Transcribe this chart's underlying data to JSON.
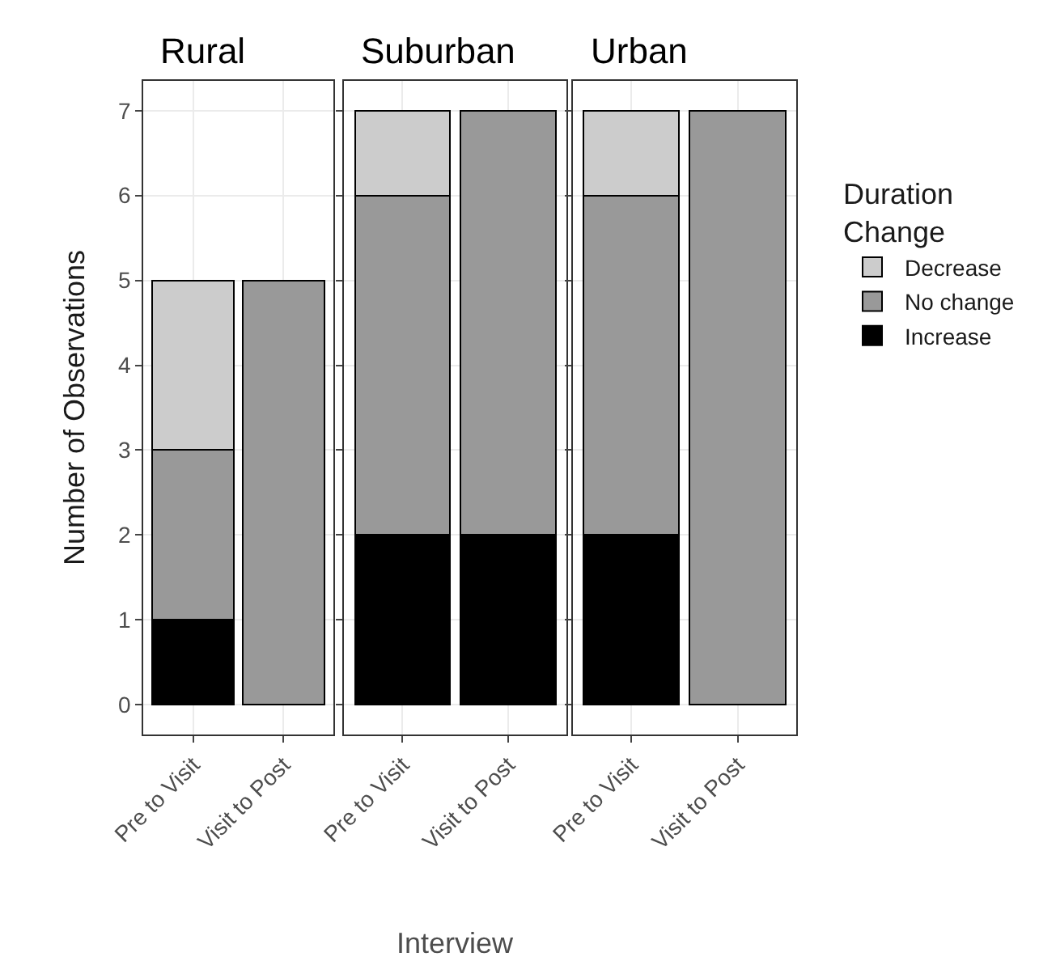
{
  "chart_data": [
    {
      "type": "bar",
      "title": "Rural",
      "ylabel": "Number of Observations",
      "categories": [
        "Pre to Visit",
        "Visit to Post"
      ],
      "stacked": true,
      "ylim": [
        -0.35,
        7.35
      ],
      "yticks": [
        0,
        1,
        2,
        3,
        4,
        5,
        6,
        7
      ],
      "grid": true,
      "legend": "right",
      "legend_title": "Duration Change",
      "series": [
        {
          "name": "Increase",
          "color": "#000000",
          "values": [
            1,
            null
          ]
        },
        {
          "name": "No change",
          "color": "#999999",
          "values": [
            2,
            5
          ]
        },
        {
          "name": "Decrease",
          "color": "#cccccc",
          "values": [
            2,
            null
          ]
        }
      ]
    },
    {
      "type": "bar",
      "title": "Suburban",
      "xlabel": "Interview",
      "categories": [
        "Pre to Visit",
        "Visit to Post"
      ],
      "stacked": true,
      "ylim": [
        -0.35,
        7.35
      ],
      "yticks": [
        0,
        1,
        2,
        3,
        4,
        5,
        6,
        7
      ],
      "grid": true,
      "tick_labels": "x",
      "series": [
        {
          "color": "#000000",
          "values": [
            2,
            2
          ]
        },
        {
          "color": "#999999",
          "values": [
            4,
            5
          ]
        },
        {
          "color": "#cccccc",
          "values": [
            1,
            null
          ]
        }
      ]
    },
    {
      "type": "bar",
      "title": "Urban",
      "categories": [
        "Pre to Visit",
        "Visit to Post"
      ],
      "stacked": true,
      "ylim": [
        -0.35,
        7.35
      ],
      "yticks": [
        0,
        1,
        2,
        3,
        4,
        5,
        6,
        7
      ],
      "grid": true,
      "tick_labels": "x",
      "series": [
        {
          "color": "#000000",
          "values": [
            2,
            null
          ]
        },
        {
          "color": "#999999",
          "values": [
            4,
            7
          ]
        },
        {
          "color": "#cccccc",
          "values": [
            1,
            null
          ]
        }
      ]
    }
  ]
}
